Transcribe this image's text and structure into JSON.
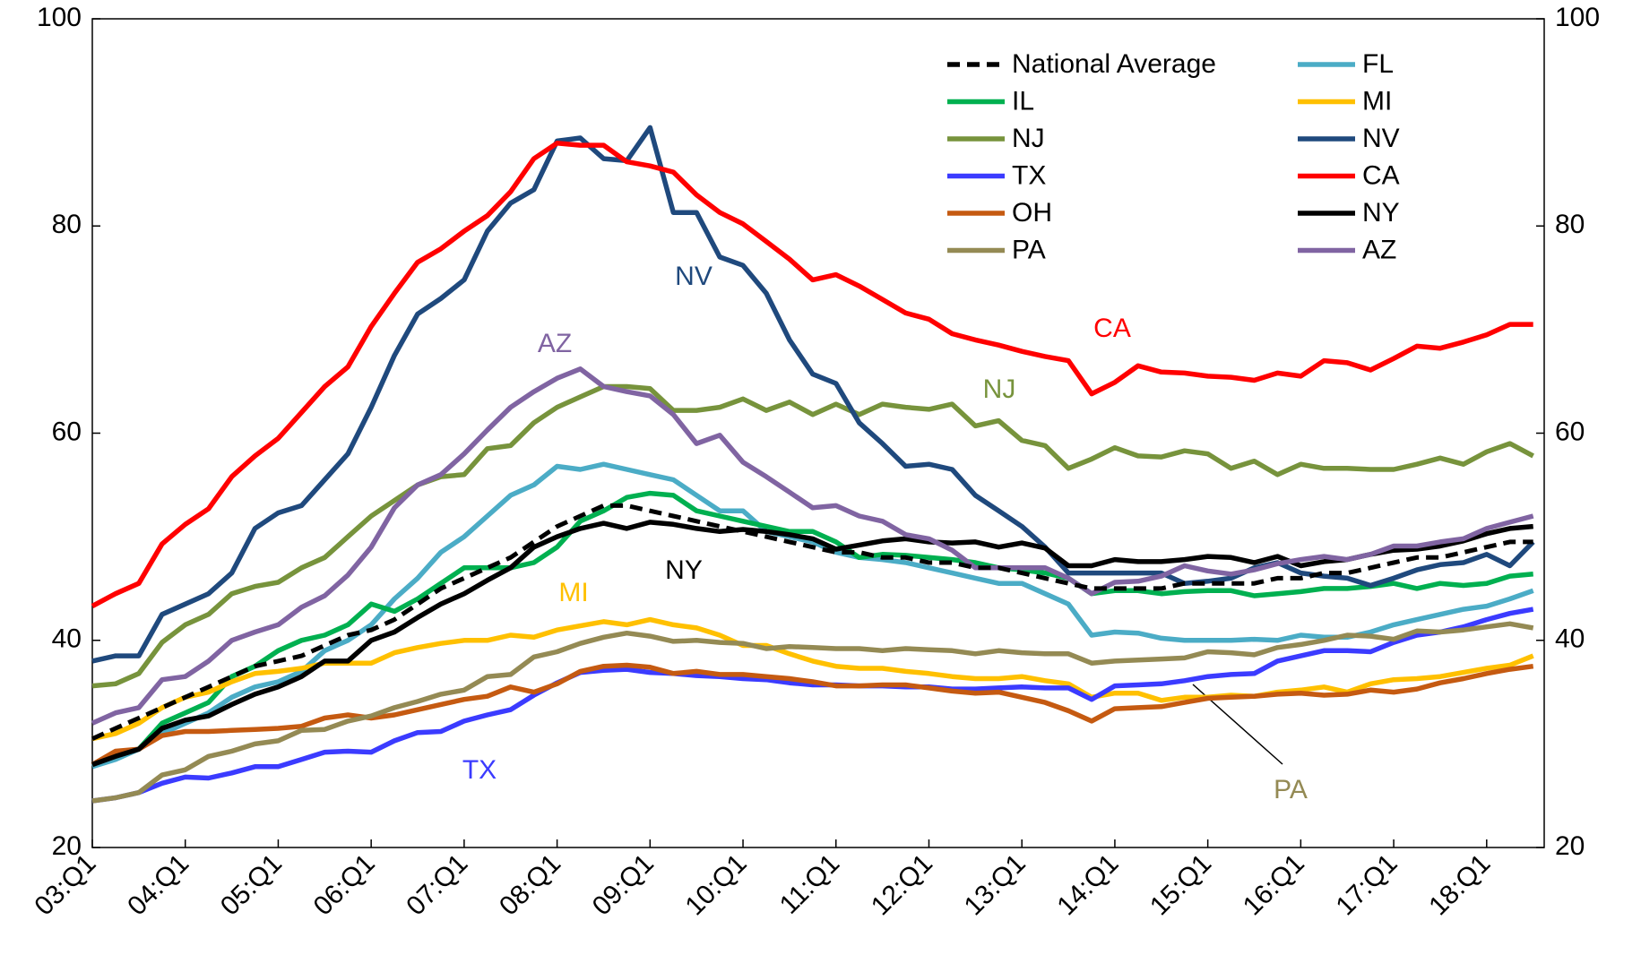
{
  "chart_data": {
    "type": "line",
    "categories": [
      "03:Q1",
      null,
      null,
      null,
      "04:Q1",
      null,
      null,
      null,
      "05:Q1",
      null,
      null,
      null,
      "06:Q1",
      null,
      null,
      null,
      "07:Q1",
      null,
      null,
      null,
      "08:Q1",
      null,
      null,
      null,
      "09:Q1",
      null,
      null,
      null,
      "10:Q1",
      null,
      null,
      null,
      "11:Q1",
      null,
      null,
      null,
      "12:Q1",
      null,
      null,
      null,
      "13:Q1",
      null,
      null,
      null,
      "14:Q1",
      null,
      null,
      null,
      "15:Q1",
      null,
      null,
      null,
      "16:Q1",
      null,
      null,
      null,
      "17:Q1",
      null,
      null,
      null,
      "18:Q1",
      null,
      null
    ],
    "ylim": [
      20,
      100
    ],
    "yticks": [
      20,
      40,
      60,
      80,
      100
    ],
    "y2lim": [
      20,
      100
    ],
    "y2ticks": [
      20,
      40,
      60,
      80,
      100
    ],
    "grid": false,
    "legend": "top-right",
    "series": [
      {
        "name": "National Average",
        "color": "#000000",
        "dash": true,
        "values": [
          30.5,
          31.5,
          32.5,
          33.5,
          34.5,
          35.5,
          36.5,
          37.5,
          38,
          38.5,
          39.5,
          40.5,
          41,
          42,
          43.5,
          45,
          46,
          47,
          48,
          49.5,
          51,
          52,
          53,
          53,
          52.5,
          52,
          51.5,
          51,
          50.5,
          50,
          49.5,
          49,
          48.5,
          48.5,
          48,
          48,
          47.5,
          47.5,
          47,
          47,
          46.5,
          46,
          45.5,
          45,
          45,
          45,
          45,
          45.5,
          45.5,
          45.5,
          45.5,
          46,
          46,
          46.5,
          46.5,
          47,
          47.5,
          48,
          48,
          48.5,
          49,
          49.5,
          49.5
        ]
      },
      {
        "name": "FL",
        "color": "#4bacc6",
        "values": [
          27.8,
          28.5,
          29.5,
          31,
          32,
          33,
          34.5,
          35.5,
          36,
          37,
          39,
          40,
          41.5,
          44,
          46,
          48.5,
          50,
          52,
          54,
          55,
          56.8,
          56.5,
          57,
          56.5,
          56,
          55.5,
          54,
          52.5,
          52.5,
          50.5,
          50,
          49.5,
          48.5,
          48,
          47.8,
          47.5,
          47,
          46.5,
          46,
          45.5,
          45.5,
          44.5,
          43.5,
          40.5,
          40.8,
          40.7,
          40.2,
          40,
          40,
          40,
          40.1,
          40,
          40.5,
          40.3,
          40.3,
          40.8,
          41.5,
          42,
          42.5,
          43,
          43.3,
          44,
          44.8
        ]
      },
      {
        "name": "IL",
        "color": "#00b050",
        "values": [
          28,
          29,
          29.5,
          32,
          33,
          34,
          36.5,
          37.5,
          39,
          40,
          40.5,
          41.5,
          43.5,
          42.8,
          44,
          45.5,
          47,
          47,
          47,
          47.5,
          49,
          51.5,
          52.5,
          53.8,
          54.2,
          54,
          52.5,
          52,
          51.5,
          51,
          50.5,
          50.5,
          49.5,
          48,
          48.3,
          48.2,
          48,
          47.8,
          47.5,
          47,
          46.8,
          46.5,
          46,
          44.5,
          44.8,
          44.8,
          44.5,
          44.7,
          44.8,
          44.8,
          44.3,
          44.5,
          44.7,
          45,
          45,
          45.2,
          45.5,
          45,
          45.5,
          45.3,
          45.5,
          46.2,
          46.4
        ]
      },
      {
        "name": "MI",
        "color": "#ffc000",
        "values": [
          30.5,
          31,
          32,
          33.5,
          34.5,
          35,
          36,
          36.8,
          37,
          37.3,
          37.8,
          37.8,
          37.8,
          38.8,
          39.3,
          39.7,
          40,
          40,
          40.5,
          40.3,
          41,
          41.4,
          41.8,
          41.5,
          42,
          41.5,
          41.2,
          40.5,
          39.5,
          39.5,
          38.7,
          38,
          37.5,
          37.3,
          37.3,
          37,
          36.8,
          36.5,
          36.3,
          36.3,
          36.5,
          36.1,
          35.8,
          34.5,
          34.9,
          34.9,
          34.2,
          34.5,
          34.5,
          34.7,
          34.6,
          35,
          35.2,
          35.5,
          35,
          35.8,
          36.2,
          36.3,
          36.5,
          36.9,
          37.3,
          37.6,
          38.5
        ]
      },
      {
        "name": "NJ",
        "color": "#77933c",
        "values": [
          35.6,
          35.8,
          36.8,
          39.8,
          41.5,
          42.5,
          44.5,
          45.2,
          45.6,
          47,
          48,
          50,
          52,
          53.5,
          55,
          55.8,
          56,
          58.5,
          58.8,
          61,
          62.5,
          63.5,
          64.5,
          64.5,
          64.3,
          62.2,
          62.2,
          62.5,
          63.3,
          62.2,
          63,
          61.8,
          62.8,
          61.8,
          62.8,
          62.5,
          62.3,
          62.8,
          60.7,
          61.2,
          59.3,
          58.8,
          56.6,
          57.5,
          58.6,
          57.8,
          57.7,
          58.3,
          58,
          56.6,
          57.3,
          56,
          57,
          56.6,
          56.6,
          56.5,
          56.5,
          57,
          57.6,
          57,
          58.2,
          59,
          57.8
        ]
      },
      {
        "name": "NV",
        "color": "#1f497d",
        "values": [
          38,
          38.5,
          38.5,
          42.5,
          43.5,
          44.5,
          46.5,
          50.8,
          52.3,
          53,
          55.5,
          58,
          62.5,
          67.5,
          71.5,
          73,
          74.8,
          79.5,
          82.2,
          83.5,
          88.2,
          88.5,
          86.5,
          86.3,
          89.5,
          81.3,
          81.3,
          77,
          76.2,
          73.5,
          69,
          65.7,
          64.8,
          61,
          59,
          56.8,
          57,
          56.5,
          54,
          52.5,
          51,
          49,
          46.5,
          46.5,
          46.5,
          46.5,
          46.5,
          45.5,
          45.7,
          46,
          47,
          47.5,
          46.5,
          46.2,
          46,
          45.3,
          46,
          46.8,
          47.3,
          47.5,
          48.3,
          47.2,
          49.5
        ]
      },
      {
        "name": "TX",
        "color": "#3b3bff",
        "values": [
          24.5,
          24.8,
          25.3,
          26.2,
          26.8,
          26.7,
          27.2,
          27.8,
          27.8,
          28.5,
          29.2,
          29.3,
          29.2,
          30.3,
          31.1,
          31.2,
          32.2,
          32.8,
          33.3,
          34.7,
          35.9,
          36.9,
          37.1,
          37.2,
          36.9,
          36.8,
          36.6,
          36.5,
          36.3,
          36.2,
          35.9,
          35.7,
          35.7,
          35.6,
          35.6,
          35.5,
          35.5,
          35.3,
          35.3,
          35.4,
          35.5,
          35.4,
          35.4,
          34.3,
          35.6,
          35.7,
          35.8,
          36.1,
          36.5,
          36.7,
          36.8,
          38,
          38.5,
          39,
          39,
          38.9,
          39.8,
          40.5,
          40.8,
          41.3,
          42,
          42.6,
          43
        ]
      },
      {
        "name": "CA",
        "color": "#ff0000",
        "values": [
          43.3,
          44.5,
          45.5,
          49.3,
          51.2,
          52.7,
          55.8,
          57.8,
          59.5,
          62,
          64.5,
          66.4,
          70.3,
          73.5,
          76.5,
          77.8,
          79.5,
          81,
          83.3,
          86.5,
          88,
          87.8,
          87.8,
          86.2,
          85.8,
          85.2,
          83,
          81.3,
          80.2,
          78.5,
          76.8,
          74.8,
          75.3,
          74.2,
          72.9,
          71.6,
          71,
          69.6,
          69,
          68.5,
          67.9,
          67.4,
          67,
          63.8,
          64.9,
          66.5,
          65.9,
          65.8,
          65.5,
          65.4,
          65.1,
          65.8,
          65.5,
          67,
          66.8,
          66.1,
          67.2,
          68.4,
          68.2,
          68.8,
          69.5,
          70.5,
          70.5
        ]
      },
      {
        "name": "OH",
        "color": "#c55a11",
        "values": [
          28,
          29.3,
          29.5,
          30.8,
          31.2,
          31.2,
          31.3,
          31.4,
          31.5,
          31.7,
          32.5,
          32.8,
          32.5,
          32.8,
          33.3,
          33.8,
          34.3,
          34.6,
          35.5,
          35,
          35.8,
          37,
          37.5,
          37.6,
          37.4,
          36.8,
          37,
          36.7,
          36.7,
          36.5,
          36.3,
          36,
          35.6,
          35.6,
          35.7,
          35.7,
          35.4,
          35.1,
          34.9,
          35,
          34.5,
          34,
          33.2,
          32.2,
          33.4,
          33.5,
          33.6,
          34,
          34.4,
          34.5,
          34.6,
          34.8,
          34.9,
          34.7,
          34.8,
          35.2,
          35,
          35.3,
          35.9,
          36.3,
          36.8,
          37.2,
          37.5
        ]
      },
      {
        "name": "NY",
        "color": "#000000",
        "values": [
          28,
          28.8,
          29.5,
          31.5,
          32.3,
          32.7,
          33.8,
          34.8,
          35.5,
          36.5,
          38,
          38,
          40,
          40.8,
          42.2,
          43.5,
          44.5,
          45.8,
          47,
          49,
          50,
          50.8,
          51.3,
          50.8,
          51.4,
          51.2,
          50.8,
          50.5,
          50.7,
          50.5,
          50.2,
          49.8,
          48.8,
          49.2,
          49.6,
          49.8,
          49.5,
          49.4,
          49.5,
          49,
          49.4,
          48.9,
          47.2,
          47.2,
          47.8,
          47.6,
          47.6,
          47.8,
          48.1,
          48,
          47.5,
          48.1,
          47.2,
          47.6,
          47.8,
          48.3,
          48.7,
          48.8,
          49.1,
          49.6,
          50.3,
          50.8,
          51
        ]
      },
      {
        "name": "PA",
        "color": "#948a54",
        "values": [
          24.5,
          24.8,
          25.3,
          27,
          27.5,
          28.8,
          29.3,
          30,
          30.3,
          31.3,
          31.4,
          32.2,
          32.7,
          33.5,
          34.1,
          34.8,
          35.2,
          36.5,
          36.7,
          38.4,
          38.9,
          39.7,
          40.3,
          40.7,
          40.4,
          39.9,
          40,
          39.8,
          39.7,
          39.2,
          39.4,
          39.3,
          39.2,
          39.2,
          39,
          39.2,
          39.1,
          39,
          38.7,
          39,
          38.8,
          38.7,
          38.7,
          37.8,
          38,
          38.1,
          38.2,
          38.3,
          38.9,
          38.8,
          38.6,
          39.3,
          39.6,
          40,
          40.5,
          40.4,
          40.1,
          40.9,
          40.8,
          41,
          41.3,
          41.6,
          41.2
        ]
      },
      {
        "name": "AZ",
        "color": "#8064a2",
        "values": [
          32,
          33,
          33.5,
          36.2,
          36.5,
          38,
          40,
          40.8,
          41.5,
          43.2,
          44.3,
          46.3,
          49,
          52.8,
          55,
          56,
          58,
          60.3,
          62.5,
          64,
          65.3,
          66.2,
          64.5,
          64,
          63.6,
          61.8,
          59,
          59.8,
          57.2,
          55.8,
          54.3,
          52.8,
          53,
          52,
          51.5,
          50.2,
          49.8,
          48.7,
          47,
          47,
          47,
          47,
          46,
          44.5,
          45.6,
          45.7,
          46.2,
          47.2,
          46.7,
          46.4,
          46.8,
          47.4,
          47.8,
          48.1,
          47.8,
          48.3,
          49.1,
          49.1,
          49.5,
          49.8,
          50.8,
          51.4,
          52
        ]
      }
    ],
    "annotations": [
      {
        "text": "NV",
        "color": "#1f497d"
      },
      {
        "text": "AZ",
        "color": "#8064a2"
      },
      {
        "text": "CA",
        "color": "#ff0000"
      },
      {
        "text": "NJ",
        "color": "#77933c"
      },
      {
        "text": "MI",
        "color": "#ffc000"
      },
      {
        "text": "NY",
        "color": "#000000"
      },
      {
        "text": "TX",
        "color": "#3b3bff"
      },
      {
        "text": "PA",
        "color": "#948a54"
      }
    ]
  }
}
